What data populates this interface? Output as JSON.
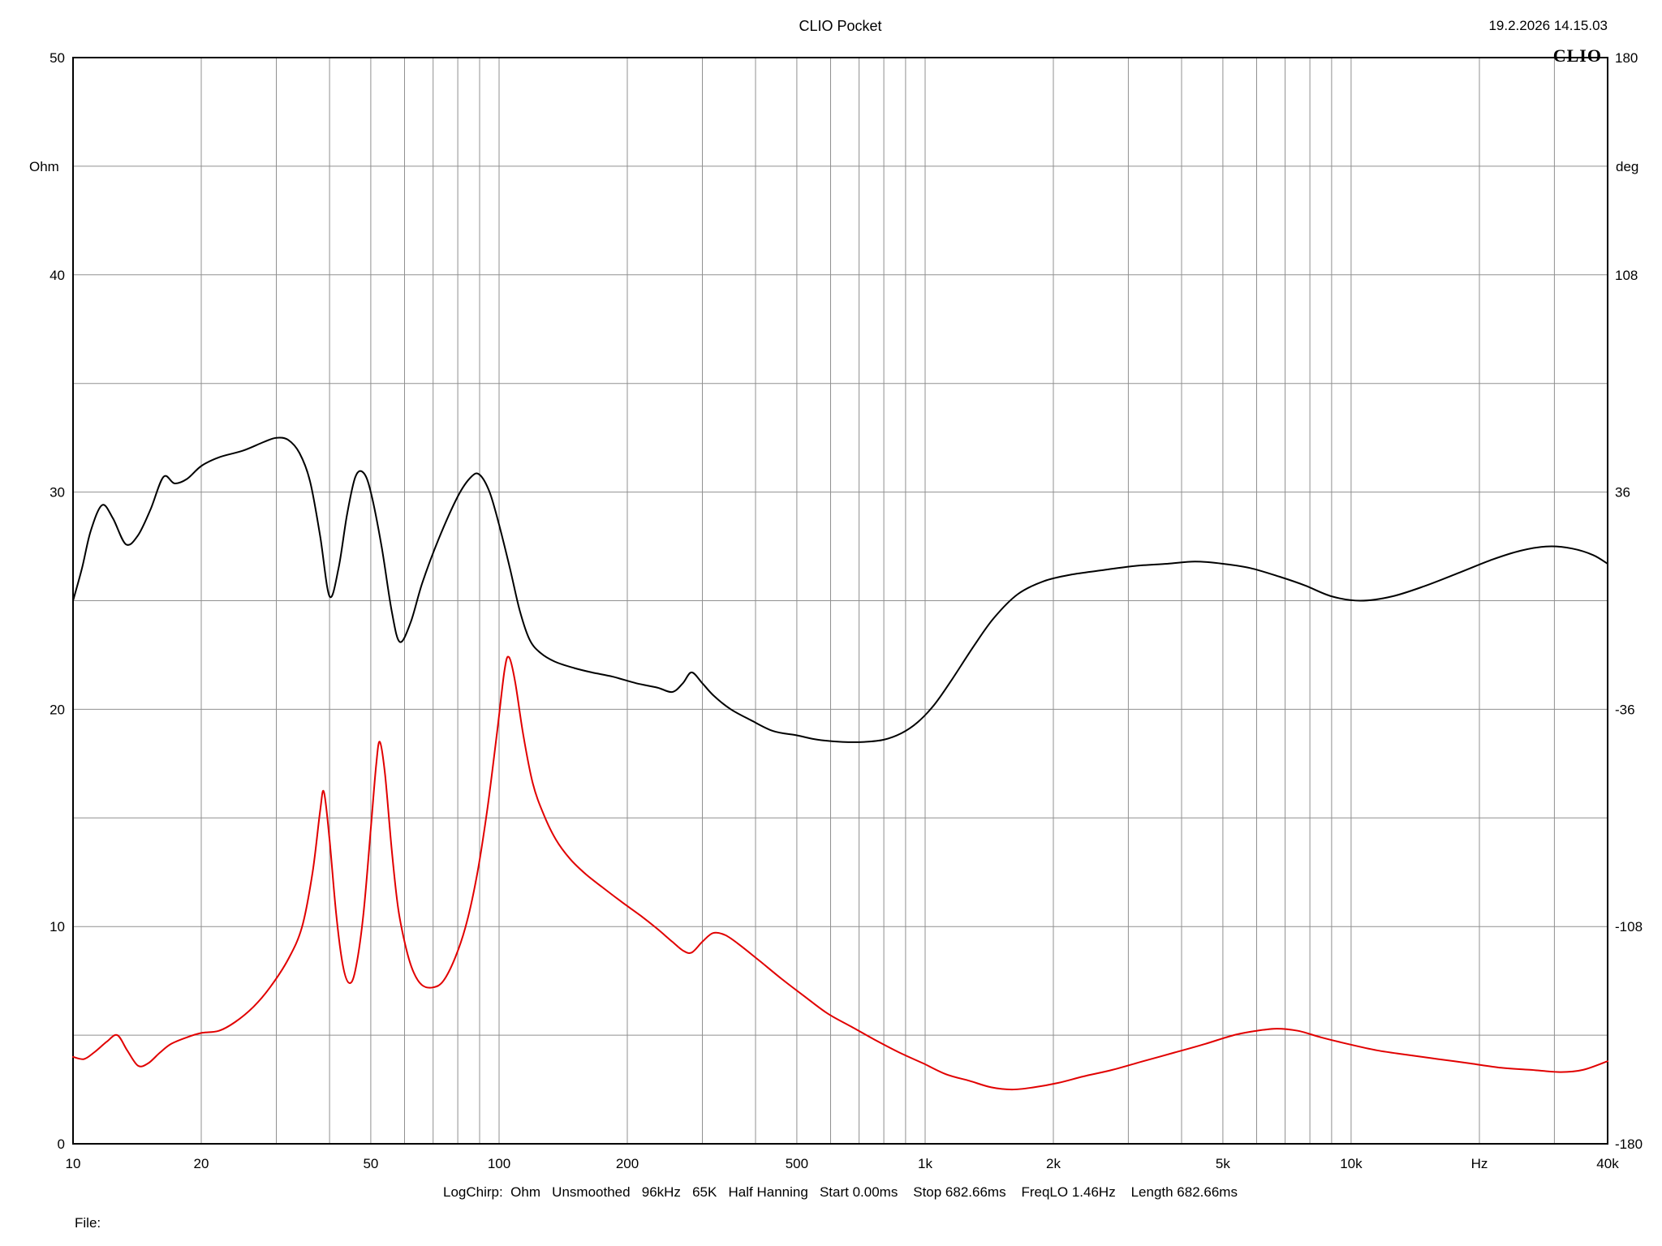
{
  "header": {
    "title": "CLIO Pocket",
    "datetime": "19.2.2026 14.15.03"
  },
  "status_bar": {
    "text": "LogChirp:  Ohm   Unsmoothed   96kHz   65K   Half Hanning   Start 0.00ms    Stop 682.66ms    FreqLO 1.46Hz    Length 682.66ms"
  },
  "footer": {
    "file_label": "File:"
  },
  "chart_data": {
    "type": "line",
    "title": "CLIO Pocket",
    "logo": "CLIO",
    "grid": "on",
    "x_axis": {
      "label": "Hz",
      "scale": "log",
      "min": 10,
      "max": 40000,
      "tick_labels": [
        {
          "f": 10,
          "label": "10"
        },
        {
          "f": 20,
          "label": "20"
        },
        {
          "f": 50,
          "label": "50"
        },
        {
          "f": 100,
          "label": "100"
        },
        {
          "f": 200,
          "label": "200"
        },
        {
          "f": 500,
          "label": "500"
        },
        {
          "f": 1000,
          "label": "1k"
        },
        {
          "f": 2000,
          "label": "2k"
        },
        {
          "f": 5000,
          "label": "5k"
        },
        {
          "f": 10000,
          "label": "10k"
        },
        {
          "f": 20000,
          "label": "Hz"
        },
        {
          "f": 40000,
          "label": "40k"
        }
      ]
    },
    "y_left": {
      "label": "Ohm",
      "min": 0,
      "max": 50,
      "grid_step": 5,
      "ticks": [
        0,
        10,
        20,
        30,
        40,
        50
      ]
    },
    "y_right": {
      "label": "deg",
      "min": -180,
      "max": 180,
      "ticks": [
        -180,
        -108,
        -36,
        36,
        108,
        180
      ]
    },
    "colors": {
      "grid": "#909090",
      "frame": "#000000",
      "background": "#ffffff"
    },
    "series": [
      {
        "name": "impedance-black",
        "color": "#000000",
        "points": [
          [
            10,
            25.0
          ],
          [
            10.5,
            26.5
          ],
          [
            11,
            28.2
          ],
          [
            11.7,
            29.4
          ],
          [
            12.4,
            28.8
          ],
          [
            13.3,
            27.6
          ],
          [
            14.2,
            28.0
          ],
          [
            15.2,
            29.2
          ],
          [
            16.3,
            30.7
          ],
          [
            17.3,
            30.4
          ],
          [
            18.5,
            30.6
          ],
          [
            20,
            31.2
          ],
          [
            22,
            31.6
          ],
          [
            25,
            31.9
          ],
          [
            28,
            32.3
          ],
          [
            30,
            32.5
          ],
          [
            32,
            32.4
          ],
          [
            34,
            31.8
          ],
          [
            36,
            30.5
          ],
          [
            38,
            28.0
          ],
          [
            40,
            25.2
          ],
          [
            42,
            26.5
          ],
          [
            44,
            29.0
          ],
          [
            46,
            30.7
          ],
          [
            48,
            30.9
          ],
          [
            50,
            30.0
          ],
          [
            53,
            27.5
          ],
          [
            56,
            24.5
          ],
          [
            58.5,
            23.1
          ],
          [
            62,
            24.0
          ],
          [
            66,
            25.8
          ],
          [
            72,
            27.8
          ],
          [
            80,
            29.8
          ],
          [
            86,
            30.7
          ],
          [
            90,
            30.8
          ],
          [
            95,
            30.0
          ],
          [
            100,
            28.5
          ],
          [
            106,
            26.5
          ],
          [
            112,
            24.5
          ],
          [
            118,
            23.2
          ],
          [
            125,
            22.6
          ],
          [
            135,
            22.2
          ],
          [
            150,
            21.9
          ],
          [
            165,
            21.7
          ],
          [
            185,
            21.5
          ],
          [
            210,
            21.2
          ],
          [
            235,
            21.0
          ],
          [
            255,
            20.8
          ],
          [
            270,
            21.2
          ],
          [
            283,
            21.7
          ],
          [
            300,
            21.2
          ],
          [
            320,
            20.6
          ],
          [
            350,
            20.0
          ],
          [
            390,
            19.5
          ],
          [
            440,
            19.0
          ],
          [
            500,
            18.8
          ],
          [
            560,
            18.6
          ],
          [
            640,
            18.5
          ],
          [
            720,
            18.5
          ],
          [
            800,
            18.6
          ],
          [
            880,
            18.9
          ],
          [
            960,
            19.4
          ],
          [
            1050,
            20.2
          ],
          [
            1150,
            21.3
          ],
          [
            1300,
            22.9
          ],
          [
            1450,
            24.2
          ],
          [
            1650,
            25.3
          ],
          [
            1900,
            25.9
          ],
          [
            2200,
            26.2
          ],
          [
            2600,
            26.4
          ],
          [
            3100,
            26.6
          ],
          [
            3700,
            26.7
          ],
          [
            4300,
            26.8
          ],
          [
            5000,
            26.7
          ],
          [
            5800,
            26.5
          ],
          [
            6800,
            26.1
          ],
          [
            7800,
            25.7
          ],
          [
            9000,
            25.2
          ],
          [
            10500,
            25.0
          ],
          [
            12500,
            25.2
          ],
          [
            15000,
            25.7
          ],
          [
            18000,
            26.3
          ],
          [
            21500,
            26.9
          ],
          [
            25000,
            27.3
          ],
          [
            29000,
            27.5
          ],
          [
            33000,
            27.4
          ],
          [
            37000,
            27.1
          ],
          [
            40000,
            26.7
          ]
        ]
      },
      {
        "name": "impedance-red",
        "color": "#e10000",
        "points": [
          [
            10,
            4.0
          ],
          [
            10.6,
            3.9
          ],
          [
            11.2,
            4.2
          ],
          [
            12,
            4.7
          ],
          [
            12.7,
            5.0
          ],
          [
            13.4,
            4.3
          ],
          [
            14.2,
            3.6
          ],
          [
            15,
            3.7
          ],
          [
            16,
            4.2
          ],
          [
            17,
            4.6
          ],
          [
            18.5,
            4.9
          ],
          [
            20,
            5.1
          ],
          [
            22,
            5.2
          ],
          [
            24,
            5.6
          ],
          [
            26.5,
            6.3
          ],
          [
            29,
            7.2
          ],
          [
            32,
            8.5
          ],
          [
            34.5,
            10.0
          ],
          [
            36.5,
            12.5
          ],
          [
            38,
            15.3
          ],
          [
            38.8,
            16.2
          ],
          [
            40,
            14.0
          ],
          [
            41.5,
            10.5
          ],
          [
            43,
            8.2
          ],
          [
            44.5,
            7.4
          ],
          [
            46,
            8.0
          ],
          [
            48,
            10.5
          ],
          [
            50,
            14.5
          ],
          [
            51.5,
            17.5
          ],
          [
            52.5,
            18.5
          ],
          [
            54,
            17.0
          ],
          [
            56,
            13.5
          ],
          [
            58,
            10.8
          ],
          [
            60.5,
            9.0
          ],
          [
            63,
            7.9
          ],
          [
            66,
            7.3
          ],
          [
            70,
            7.2
          ],
          [
            74,
            7.5
          ],
          [
            79,
            8.6
          ],
          [
            84,
            10.2
          ],
          [
            89,
            12.5
          ],
          [
            94,
            15.5
          ],
          [
            99,
            19.0
          ],
          [
            103,
            21.8
          ],
          [
            105.5,
            22.4
          ],
          [
            109,
            21.3
          ],
          [
            114,
            18.8
          ],
          [
            120,
            16.6
          ],
          [
            127,
            15.2
          ],
          [
            136,
            14.0
          ],
          [
            147,
            13.1
          ],
          [
            160,
            12.4
          ],
          [
            175,
            11.8
          ],
          [
            195,
            11.1
          ],
          [
            215,
            10.5
          ],
          [
            235,
            9.9
          ],
          [
            255,
            9.3
          ],
          [
            270,
            8.9
          ],
          [
            283,
            8.8
          ],
          [
            300,
            9.3
          ],
          [
            318,
            9.7
          ],
          [
            340,
            9.6
          ],
          [
            370,
            9.1
          ],
          [
            410,
            8.4
          ],
          [
            460,
            7.6
          ],
          [
            520,
            6.8
          ],
          [
            590,
            6.0
          ],
          [
            670,
            5.4
          ],
          [
            760,
            4.8
          ],
          [
            870,
            4.2
          ],
          [
            990,
            3.7
          ],
          [
            1120,
            3.2
          ],
          [
            1270,
            2.9
          ],
          [
            1430,
            2.6
          ],
          [
            1600,
            2.5
          ],
          [
            1800,
            2.6
          ],
          [
            2050,
            2.8
          ],
          [
            2350,
            3.1
          ],
          [
            2750,
            3.4
          ],
          [
            3250,
            3.8
          ],
          [
            3850,
            4.2
          ],
          [
            4550,
            4.6
          ],
          [
            5300,
            5.0
          ],
          [
            6000,
            5.2
          ],
          [
            6700,
            5.3
          ],
          [
            7500,
            5.2
          ],
          [
            8500,
            4.9
          ],
          [
            9800,
            4.6
          ],
          [
            11500,
            4.3
          ],
          [
            13500,
            4.1
          ],
          [
            16000,
            3.9
          ],
          [
            19000,
            3.7
          ],
          [
            22500,
            3.5
          ],
          [
            26500,
            3.4
          ],
          [
            31000,
            3.3
          ],
          [
            35000,
            3.4
          ],
          [
            40000,
            3.8
          ]
        ]
      }
    ]
  }
}
